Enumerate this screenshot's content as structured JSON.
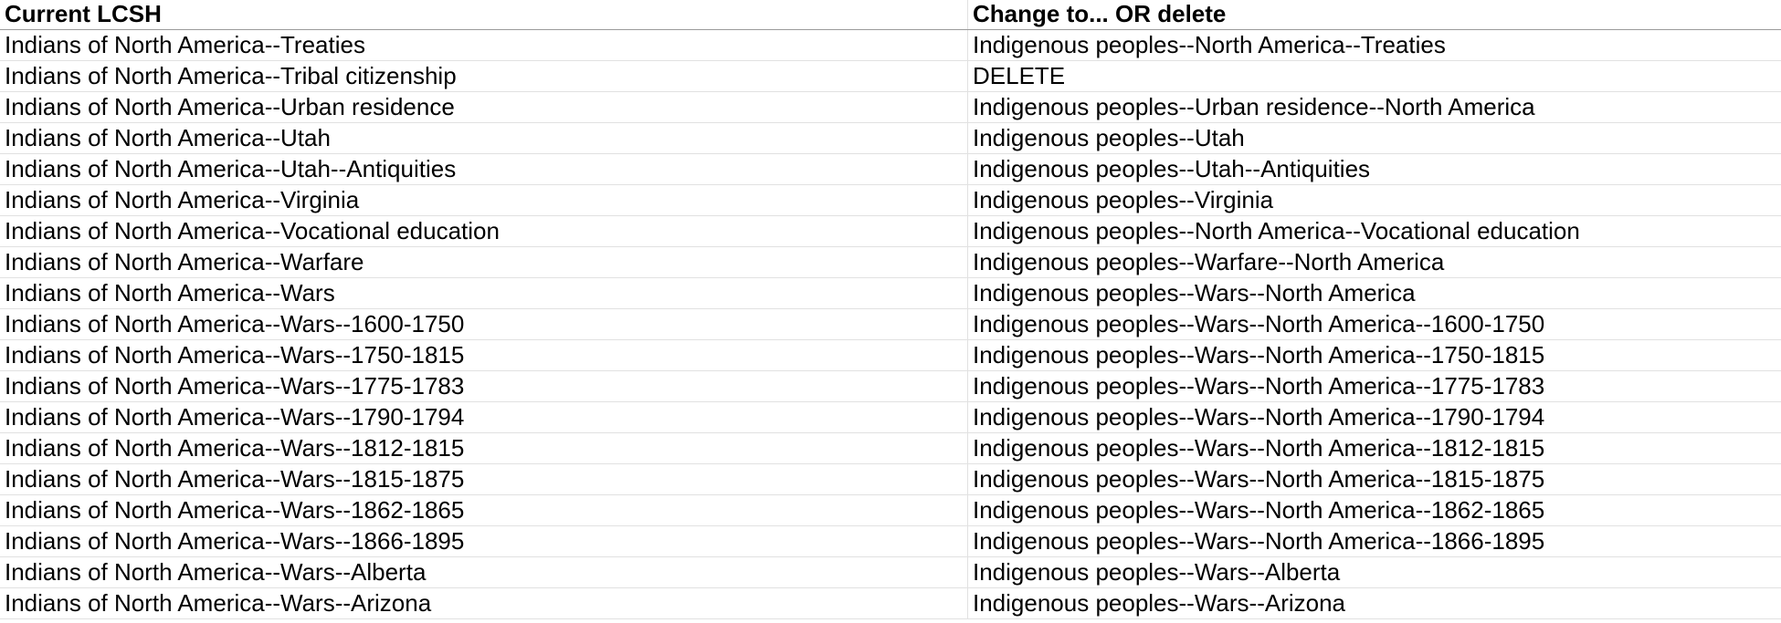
{
  "headers": {
    "col_a": "Current LCSH",
    "col_b": "Change to... OR delete"
  },
  "rows": [
    {
      "a": "Indians of North America--Treaties",
      "b": "Indigenous peoples--North America--Treaties"
    },
    {
      "a": "Indians of North America--Tribal citizenship",
      "b": "DELETE"
    },
    {
      "a": "Indians of North America--Urban residence",
      "b": "Indigenous peoples--Urban residence--North America"
    },
    {
      "a": "Indians of North America--Utah",
      "b": "Indigenous peoples--Utah"
    },
    {
      "a": "Indians of North America--Utah--Antiquities",
      "b": "Indigenous peoples--Utah--Antiquities"
    },
    {
      "a": "Indians of North America--Virginia",
      "b": "Indigenous peoples--Virginia"
    },
    {
      "a": "Indians of North America--Vocational education",
      "b": "Indigenous peoples--North America--Vocational education"
    },
    {
      "a": "Indians of North America--Warfare",
      "b": "Indigenous peoples--Warfare--North America"
    },
    {
      "a": "Indians of North America--Wars",
      "b": "Indigenous peoples--Wars--North America"
    },
    {
      "a": "Indians of North America--Wars--1600-1750",
      "b": "Indigenous peoples--Wars--North America--1600-1750"
    },
    {
      "a": "Indians of North America--Wars--1750-1815",
      "b": "Indigenous peoples--Wars--North America--1750-1815"
    },
    {
      "a": "Indians of North America--Wars--1775-1783",
      "b": "Indigenous peoples--Wars--North America--1775-1783"
    },
    {
      "a": "Indians of North America--Wars--1790-1794",
      "b": "Indigenous peoples--Wars--North America--1790-1794"
    },
    {
      "a": "Indians of North America--Wars--1812-1815",
      "b": "Indigenous peoples--Wars--North America--1812-1815"
    },
    {
      "a": "Indians of North America--Wars--1815-1875",
      "b": "Indigenous peoples--Wars--North America--1815-1875"
    },
    {
      "a": "Indians of North America--Wars--1862-1865",
      "b": "Indigenous peoples--Wars--North America--1862-1865"
    },
    {
      "a": "Indians of North America--Wars--1866-1895",
      "b": "Indigenous peoples--Wars--North America--1866-1895"
    },
    {
      "a": "Indians of North America--Wars--Alberta",
      "b": "Indigenous peoples--Wars--Alberta"
    },
    {
      "a": "Indians of North America--Wars--Arizona",
      "b": "Indigenous peoples--Wars--Arizona"
    }
  ]
}
